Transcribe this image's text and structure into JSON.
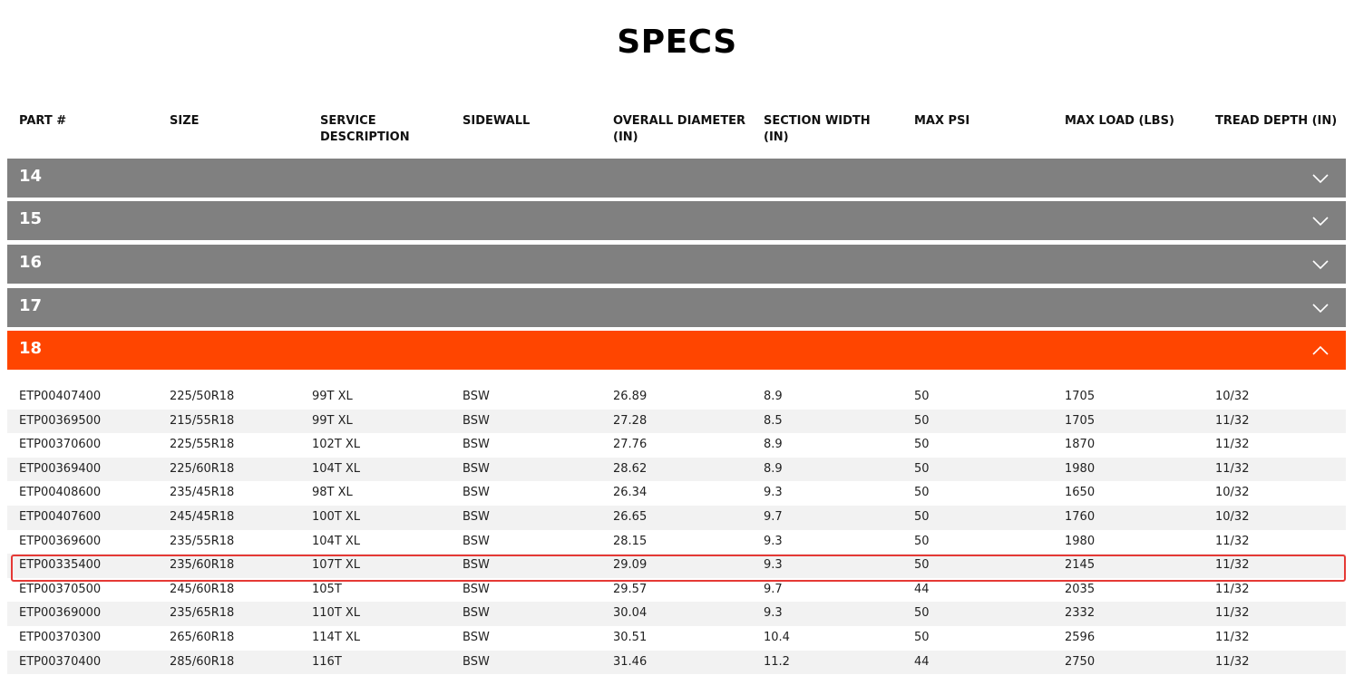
{
  "page": {
    "title": "SPECS"
  },
  "columns": [
    "PART #",
    "SIZE",
    "SERVICE DESCRIPTION",
    "SIDEWALL",
    "OVERALL DIAMETER (IN)",
    "SECTION WIDTH (IN)",
    "MAX PSI",
    "MAX LOAD (LBS)",
    "TREAD DEPTH (IN)"
  ],
  "sections": [
    {
      "label": "14",
      "expanded": false,
      "icon": "chevron-down-icon"
    },
    {
      "label": "15",
      "expanded": false,
      "icon": "chevron-down-icon"
    },
    {
      "label": "16",
      "expanded": false,
      "icon": "chevron-down-icon"
    },
    {
      "label": "17",
      "expanded": false,
      "icon": "chevron-down-icon"
    },
    {
      "label": "18",
      "expanded": true,
      "icon": "chevron-up-icon"
    }
  ],
  "rows": [
    [
      "ETP00407400",
      "225/50R18",
      "99T XL",
      "BSW",
      "26.89",
      "8.9",
      "50",
      "1705",
      "10/32"
    ],
    [
      "ETP00369500",
      "215/55R18",
      "99T XL",
      "BSW",
      "27.28",
      "8.5",
      "50",
      "1705",
      "11/32"
    ],
    [
      "ETP00370600",
      "225/55R18",
      "102T XL",
      "BSW",
      "27.76",
      "8.9",
      "50",
      "1870",
      "11/32"
    ],
    [
      "ETP00369400",
      "225/60R18",
      "104T XL",
      "BSW",
      "28.62",
      "8.9",
      "50",
      "1980",
      "11/32"
    ],
    [
      "ETP00408600",
      "235/45R18",
      "98T XL",
      "BSW",
      "26.34",
      "9.3",
      "50",
      "1650",
      "10/32"
    ],
    [
      "ETP00407600",
      "245/45R18",
      "100T XL",
      "BSW",
      "26.65",
      "9.7",
      "50",
      "1760",
      "10/32"
    ],
    [
      "ETP00369600",
      "235/55R18",
      "104T XL",
      "BSW",
      "28.15",
      "9.3",
      "50",
      "1980",
      "11/32"
    ],
    [
      "ETP00335400",
      "235/60R18",
      "107T XL",
      "BSW",
      "29.09",
      "9.3",
      "50",
      "2145",
      "11/32"
    ],
    [
      "ETP00370500",
      "245/60R18",
      "105T",
      "BSW",
      "29.57",
      "9.7",
      "44",
      "2035",
      "11/32"
    ],
    [
      "ETP00369000",
      "235/65R18",
      "110T XL",
      "BSW",
      "30.04",
      "9.3",
      "50",
      "2332",
      "11/32"
    ],
    [
      "ETP00370300",
      "265/60R18",
      "114T XL",
      "BSW",
      "30.51",
      "10.4",
      "50",
      "2596",
      "11/32"
    ],
    [
      "ETP00370400",
      "285/60R18",
      "116T",
      "BSW",
      "31.46",
      "11.2",
      "44",
      "2750",
      "11/32"
    ]
  ],
  "highlighted_row_part": "ETP00335400",
  "colors": {
    "collapsed_bar": "#808080",
    "expanded_bar": "#ff4500",
    "highlight_border": "#e53935",
    "alt_row": "#f2f2f2"
  }
}
